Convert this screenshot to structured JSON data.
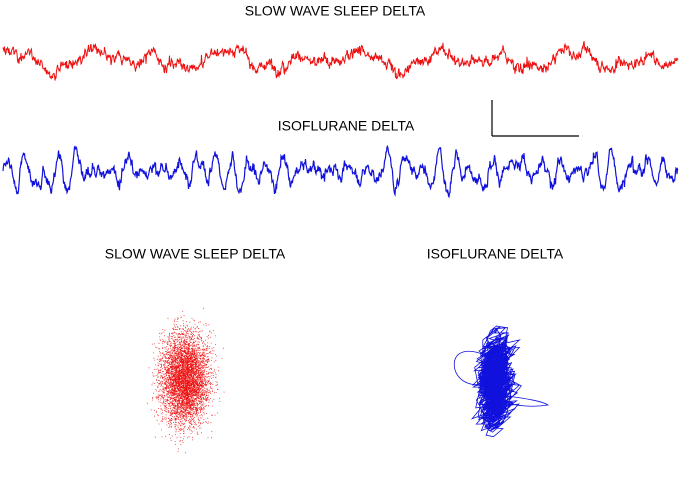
{
  "traces": [
    {
      "title": "SLOW WAVE SLEEP DELTA",
      "color": "#ee1111"
    },
    {
      "title": "ISOFLURANE DELTA",
      "color": "#1111dd"
    }
  ],
  "phase_plots": [
    {
      "title": "SLOW WAVE SLEEP DELTA",
      "color": "#ee1111"
    },
    {
      "title": "ISOFLURANE DELTA",
      "color": "#1111dd"
    }
  ]
}
